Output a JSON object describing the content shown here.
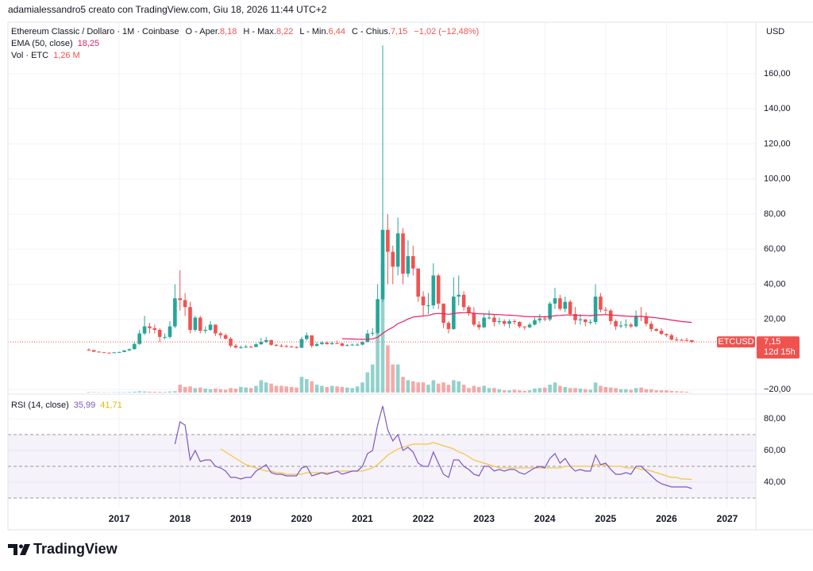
{
  "header": {
    "author_line": "adamialessandro5 creato con TradingView.com, Giu 18, 2026 11:44 UTC+2"
  },
  "legend": {
    "symbol": "Ethereum Classic / Dollaro · 1M · Coinbase",
    "open_label": "O - Aper.",
    "open": "8,18",
    "high_label": "H - Max.",
    "high": "8,22",
    "low_label": "L - Min.",
    "low": "6,44",
    "close_label": "C - Chius.",
    "close": "7,15",
    "change": "−1,02 (−12,48%)"
  },
  "footer": {
    "brand": "TradingView"
  },
  "chart_data": {
    "type": "candlestick",
    "currency": "USD",
    "symbol_tag": "ETCUSD",
    "last_label": "7,15",
    "countdown": "12d 15h",
    "up_color": "#26a69a",
    "down_color": "#ef5350",
    "xlim": [
      2015.17,
      2027.47
    ],
    "xticks": [
      2017,
      2018,
      2019,
      2020,
      2021,
      2022,
      2023,
      2024,
      2025,
      2026,
      2027
    ],
    "ylim": [
      -22.6,
      189.3
    ],
    "yticks": [
      {
        "value": -20,
        "label": "−20,00"
      },
      {
        "value": 20,
        "label": "20,00"
      },
      {
        "value": 40,
        "label": "40,00"
      },
      {
        "value": 60,
        "label": "60,00"
      },
      {
        "value": 80,
        "label": "80,00"
      },
      {
        "value": 100,
        "label": "100,00"
      },
      {
        "value": 120,
        "label": "120,00"
      },
      {
        "value": 140,
        "label": "140,00"
      },
      {
        "value": 160,
        "label": "160,00"
      }
    ],
    "grid": true,
    "open": [
      2.8,
      2.5,
      1.6,
      1.3,
      1.0,
      0.95,
      1.2,
      1.4,
      2.3,
      3.0,
      6.0,
      12,
      16,
      15,
      14,
      10,
      10,
      16,
      32,
      31,
      27,
      14,
      21,
      13.5,
      14,
      17,
      12,
      11,
      9,
      5,
      4,
      4.1,
      4.4,
      4.3,
      5.8,
      7.2,
      8.2,
      5.5,
      5.0,
      4.8,
      4.5,
      4.3,
      3.8,
      8.8,
      10.9,
      4.9,
      5.9,
      6.7,
      5.9,
      6.5,
      6.3,
      5.0,
      5.3,
      5.6,
      5.6,
      7.1,
      11.9,
      12.3,
      31.5,
      71,
      58.5,
      50,
      69,
      46,
      56,
      49,
      33,
      28,
      28,
      45,
      29,
      18,
      14.5,
      33,
      34,
      27,
      23.5,
      17,
      15.5,
      21,
      21,
      18.5,
      19,
      17.5,
      19,
      18.5,
      16,
      15.5,
      17,
      19.5,
      20.5,
      20,
      29,
      32,
      26,
      30,
      23,
      19.5,
      20,
      18.5,
      18.5,
      33,
      25.5,
      25,
      19,
      16,
      16.5,
      17,
      16,
      22,
      21.5,
      17.5,
      14.5,
      13.5,
      11.7,
      11,
      8.5,
      8.3,
      8.2,
      8.18
    ],
    "high": [
      3.5,
      2.6,
      1.9,
      1.4,
      1.2,
      1.4,
      1.6,
      2.5,
      3.5,
      7.5,
      14,
      22,
      18,
      17,
      15,
      12,
      19,
      40,
      48,
      35,
      30,
      22,
      22,
      16,
      19,
      17,
      13,
      12,
      10,
      6,
      5,
      5.5,
      5,
      6.5,
      9.5,
      10,
      8.5,
      6,
      6,
      5.5,
      5,
      4.5,
      10,
      12.5,
      11,
      7,
      7.5,
      7.5,
      7.5,
      8,
      6.7,
      6,
      6.2,
      6.5,
      7.5,
      14,
      15,
      40,
      176,
      80,
      62,
      78,
      72,
      65,
      62,
      49,
      36,
      35,
      52,
      46,
      29,
      19,
      44,
      45,
      36,
      28,
      27,
      19,
      23,
      25,
      23,
      21,
      20,
      20,
      20,
      19,
      16,
      18,
      21,
      23,
      22,
      30,
      38,
      34,
      33,
      31,
      27,
      23,
      20,
      20,
      40,
      35,
      27,
      26,
      20,
      19,
      20,
      18,
      25,
      27,
      24,
      19,
      15,
      15,
      12,
      11.8,
      10,
      9,
      9.5,
      8.22
    ],
    "low": [
      2.0,
      1.3,
      1.2,
      0.9,
      0.8,
      0.9,
      1.1,
      1.3,
      2.0,
      2.9,
      5.5,
      11,
      12,
      12,
      7,
      8.5,
      9,
      15,
      25,
      22,
      12,
      13,
      12,
      12,
      13.5,
      10.5,
      9,
      8.5,
      4,
      3.5,
      3.3,
      3.8,
      4,
      4.1,
      5.5,
      6.5,
      5,
      4.5,
      4.2,
      4,
      4,
      3.5,
      3.7,
      8,
      3.8,
      4.5,
      5.5,
      5.6,
      5.5,
      5.9,
      4.5,
      4.8,
      5.1,
      5,
      5.2,
      7,
      10.5,
      11.8,
      30,
      40,
      40,
      45,
      40,
      44,
      45,
      30,
      22,
      23,
      26,
      26,
      15,
      12,
      14,
      28,
      25,
      22,
      16,
      14,
      15,
      20,
      16,
      17,
      16,
      15,
      17,
      15,
      14,
      15,
      16.5,
      18,
      19,
      19,
      26,
      25,
      24,
      22,
      17,
      17,
      16,
      17,
      17,
      24,
      23,
      17,
      14,
      15,
      15,
      15,
      15.5,
      19,
      16,
      13,
      13,
      11,
      10,
      8,
      7.5,
      7.8,
      7.5,
      6.44
    ],
    "close": [
      2.5,
      1.6,
      1.3,
      1.0,
      0.95,
      1.2,
      1.4,
      2.3,
      3.0,
      6.0,
      12,
      16,
      15,
      14,
      10,
      10,
      16,
      32,
      31,
      27,
      14,
      21,
      13.5,
      14,
      17,
      12,
      11,
      9,
      5,
      4,
      4.1,
      4.4,
      4.3,
      5.8,
      7.2,
      8.2,
      5.5,
      5.0,
      4.8,
      4.5,
      4.3,
      3.8,
      8.8,
      10.9,
      4.9,
      5.9,
      6.7,
      5.9,
      6.5,
      6.3,
      5.0,
      5.3,
      5.6,
      5.6,
      7.1,
      11.9,
      12.3,
      31.5,
      71,
      58.5,
      50,
      69,
      46,
      56,
      49,
      33,
      28,
      28,
      45,
      29,
      18,
      14.5,
      33,
      34,
      27,
      23.5,
      17,
      15.5,
      21,
      21,
      18.5,
      19,
      17.5,
      19,
      18.5,
      16,
      15.5,
      17,
      19.5,
      20.5,
      20,
      29,
      32,
      26,
      30,
      23,
      19.5,
      20,
      18.5,
      18.5,
      33,
      25.5,
      25,
      19,
      16,
      16.5,
      17,
      16,
      22,
      21.5,
      17.5,
      14.5,
      13.5,
      11.7,
      11,
      8.5,
      8.3,
      8.2,
      8.18,
      7.15
    ],
    "ema": {
      "name": "EMA (50, close)",
      "value_label": "18,25",
      "color": "#e91e63",
      "values": [
        null,
        null,
        null,
        null,
        null,
        null,
        null,
        null,
        null,
        null,
        null,
        null,
        null,
        null,
        null,
        null,
        null,
        null,
        null,
        null,
        null,
        null,
        null,
        null,
        null,
        null,
        null,
        null,
        null,
        null,
        null,
        null,
        null,
        null,
        null,
        null,
        null,
        null,
        null,
        null,
        null,
        null,
        null,
        null,
        null,
        null,
        null,
        null,
        null,
        null,
        9.0,
        8.9,
        8.8,
        8.7,
        8.6,
        8.7,
        8.9,
        9.8,
        12,
        14,
        15.5,
        17.6,
        18.7,
        20.2,
        21.3,
        21.7,
        22,
        22.2,
        23.1,
        23.4,
        23.2,
        22.9,
        23.3,
        23.7,
        23.8,
        23.8,
        23.5,
        23.2,
        23.1,
        23,
        22.8,
        22.7,
        22.5,
        22.4,
        22.2,
        22,
        21.7,
        21.6,
        21.5,
        21.5,
        21.4,
        21.7,
        22.1,
        22.2,
        22.5,
        22.5,
        22.4,
        22.3,
        22.2,
        22.1,
        22.5,
        22.6,
        22.7,
        22.5,
        22.3,
        22.1,
        21.9,
        21.7,
        21.7,
        21.7,
        21.5,
        21.2,
        20.9,
        20.5,
        20.1,
        19.6,
        19.2,
        18.8,
        18.5,
        18.25
      ]
    },
    "volume": {
      "name": "Vol · ETC",
      "value_label": "1,26 M",
      "vlim": [
        0,
        1200
      ],
      "values": [
        5,
        4,
        3,
        3,
        2,
        3,
        3,
        4,
        5,
        8,
        12,
        10,
        8,
        8,
        7,
        6,
        9,
        12,
        70,
        50,
        55,
        40,
        45,
        35,
        30,
        35,
        30,
        25,
        40,
        35,
        50,
        45,
        40,
        60,
        110,
        90,
        80,
        60,
        60,
        55,
        50,
        45,
        140,
        120,
        100,
        70,
        60,
        50,
        60,
        55,
        50,
        45,
        40,
        55,
        90,
        180,
        250,
        700,
        1150,
        420,
        250,
        250,
        140,
        110,
        100,
        90,
        90,
        70,
        110,
        80,
        90,
        70,
        110,
        100,
        70,
        40,
        60,
        50,
        60,
        40,
        40,
        30,
        20,
        20,
        25,
        20,
        15,
        20,
        35,
        40,
        45,
        70,
        90,
        60,
        50,
        40,
        40,
        35,
        30,
        25,
        90,
        60,
        50,
        45,
        40,
        30,
        30,
        25,
        40,
        45,
        30,
        30,
        20,
        20,
        20,
        15,
        12,
        10,
        8,
        1.26
      ]
    },
    "rsi": {
      "name": "RSI (14, close)",
      "value_label": "35,99",
      "ma_label": "41,71",
      "color": "#7e57c2",
      "ma_color": "#f5c542",
      "ylim": [
        24,
        94
      ],
      "yticks": [
        {
          "value": 40,
          "label": "40,00"
        },
        {
          "value": 60,
          "label": "60,00"
        },
        {
          "value": 80,
          "label": "80,00"
        }
      ],
      "bands": [
        30,
        50,
        70
      ],
      "values": [
        null,
        null,
        null,
        null,
        null,
        null,
        null,
        null,
        null,
        null,
        null,
        null,
        null,
        null,
        null,
        null,
        null,
        64,
        78,
        76,
        54,
        60,
        53,
        54,
        54,
        50,
        49,
        47,
        43,
        43,
        42,
        43,
        43,
        47,
        49,
        51,
        46,
        45,
        45,
        44,
        44,
        44,
        49,
        50,
        44,
        45,
        46,
        45,
        46,
        47,
        45,
        46,
        47,
        47,
        50,
        58,
        60,
        76,
        88,
        73,
        66,
        70,
        60,
        62,
        59,
        52,
        50,
        50,
        59,
        52,
        45,
        43,
        54,
        54,
        50,
        48,
        45,
        44,
        50,
        50,
        47,
        48,
        47,
        48,
        48,
        46,
        45,
        47,
        49,
        50,
        49,
        55,
        58,
        52,
        55,
        50,
        47,
        48,
        47,
        47,
        57,
        51,
        52,
        48,
        45,
        45,
        46,
        45,
        50,
        50,
        47,
        44,
        41,
        39,
        38,
        37,
        37,
        37,
        37,
        35.99
      ],
      "ma_values": [
        null,
        null,
        null,
        null,
        null,
        null,
        null,
        null,
        null,
        null,
        null,
        null,
        null,
        null,
        null,
        null,
        null,
        null,
        null,
        null,
        null,
        null,
        null,
        null,
        null,
        null,
        61,
        59,
        57,
        55,
        53,
        51,
        50,
        49,
        48,
        47,
        47,
        46,
        46,
        45,
        45,
        45,
        45,
        46,
        46,
        46,
        46,
        46,
        46,
        47,
        47,
        47,
        47,
        47,
        47,
        48,
        49,
        51,
        54,
        57,
        59,
        61,
        62,
        63,
        64,
        64,
        64,
        64,
        65,
        64,
        63,
        62,
        61,
        59,
        58,
        56,
        54,
        53,
        52,
        51,
        50,
        49,
        49,
        49,
        49,
        49,
        49,
        49,
        49,
        49,
        49,
        49,
        49,
        49,
        50,
        50,
        50,
        50,
        50,
        50,
        51,
        51,
        51,
        50,
        50,
        50,
        49,
        49,
        49,
        48,
        48,
        47,
        46,
        45,
        44,
        43,
        43,
        42,
        42,
        41.71
      ]
    }
  }
}
